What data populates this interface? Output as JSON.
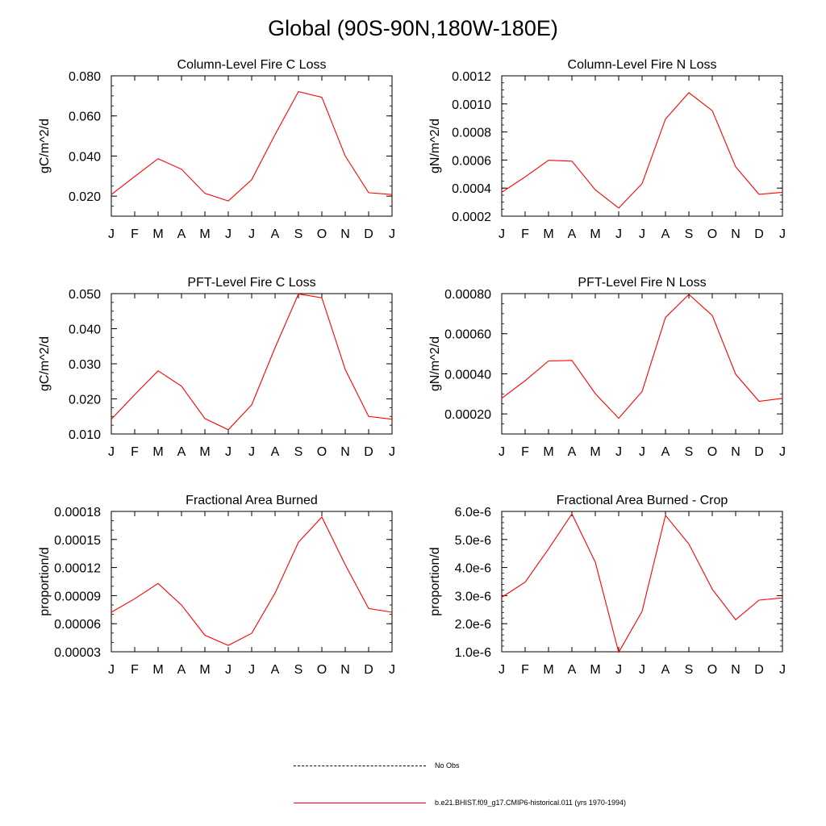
{
  "title": "Global (90S-90N,180W-180E)",
  "months": [
    "J",
    "F",
    "M",
    "A",
    "M",
    "J",
    "J",
    "A",
    "S",
    "O",
    "N",
    "D",
    "J"
  ],
  "series_color": "#ff0000",
  "chart_data": [
    {
      "type": "line",
      "title": "Column-Level Fire C Loss",
      "ylabel": "gC/m^2/d",
      "ylim": [
        0.01,
        0.08
      ],
      "yticks": [
        0.02,
        0.04,
        0.06,
        0.08
      ],
      "ytick_labels": [
        "0.020",
        "0.040",
        "0.060",
        "0.080"
      ],
      "yminor": 0.005,
      "series": [
        {
          "values": [
            0.0208,
            0.0298,
            0.0387,
            0.0334,
            0.0214,
            0.0176,
            0.0282,
            0.0507,
            0.0721,
            0.0693,
            0.04,
            0.0217,
            0.0208
          ]
        }
      ]
    },
    {
      "type": "line",
      "title": "Column-Level Fire N Loss",
      "ylabel": "gN/m^2/d",
      "ylim": [
        0.0002,
        0.0012
      ],
      "yticks": [
        0.0002,
        0.0004,
        0.0006,
        0.0008,
        0.001,
        0.0012
      ],
      "ytick_labels": [
        "0.0002",
        "0.0004",
        "0.0006",
        "0.0008",
        "0.0010",
        "0.0012"
      ],
      "yminor": 5e-05,
      "series": [
        {
          "values": [
            0.00037,
            0.00048,
            0.000598,
            0.000592,
            0.000388,
            0.000258,
            0.000432,
            0.000892,
            0.00108,
            0.000952,
            0.000552,
            0.000356,
            0.00037
          ]
        }
      ]
    },
    {
      "type": "line",
      "title": "PFT-Level Fire C Loss",
      "ylabel": "gC/m^2/d",
      "ylim": [
        0.01,
        0.05
      ],
      "yticks": [
        0.01,
        0.02,
        0.03,
        0.04,
        0.05
      ],
      "ytick_labels": [
        "0.010",
        "0.020",
        "0.030",
        "0.040",
        "0.050"
      ],
      "yminor": 0.0025,
      "series": [
        {
          "values": [
            0.0142,
            0.0212,
            0.028,
            0.0236,
            0.0144,
            0.0112,
            0.0183,
            0.0346,
            0.0499,
            0.0488,
            0.0284,
            0.015,
            0.0142
          ]
        }
      ]
    },
    {
      "type": "line",
      "title": "PFT-Level Fire N Loss",
      "ylabel": "gN/m^2/d",
      "ylim": [
        0.0001,
        0.0008
      ],
      "yticks": [
        0.0002,
        0.0004,
        0.0006,
        0.0008
      ],
      "ytick_labels": [
        "0.00020",
        "0.00040",
        "0.00060",
        "0.00080"
      ],
      "yminor": 5e-05,
      "series": [
        {
          "values": [
            0.000278,
            0.000366,
            0.000464,
            0.000467,
            0.000301,
            0.000178,
            0.000312,
            0.000681,
            0.000796,
            0.000691,
            0.000398,
            0.000263,
            0.000278
          ]
        }
      ]
    },
    {
      "type": "line",
      "title": "Fractional Area Burned",
      "ylabel": "proportion/d",
      "ylim": [
        3e-05,
        0.00018
      ],
      "yticks": [
        3e-05,
        6e-05,
        9e-05,
        0.00012,
        0.00015,
        0.00018
      ],
      "ytick_labels": [
        "0.00003",
        "0.00006",
        "0.00009",
        "0.00012",
        "0.00015",
        "0.00018"
      ],
      "yminor": 1e-05,
      "series": [
        {
          "values": [
            7.22e-05,
            8.66e-05,
            0.000103,
            7.99e-05,
            4.77e-05,
            3.68e-05,
            4.97e-05,
            9.28e-05,
            0.000147,
            0.000174,
            0.000123,
            7.62e-05,
            7.22e-05
          ]
        }
      ]
    },
    {
      "type": "line",
      "title": "Fractional Area Burned - Crop",
      "ylabel": "proportion/d",
      "ylim": [
        1e-06,
        6e-06
      ],
      "yticks": [
        1e-06,
        2e-06,
        3e-06,
        4e-06,
        5e-06,
        6e-06
      ],
      "ytick_labels": [
        "1.0e-6",
        "2.0e-6",
        "3.0e-6",
        "4.0e-6",
        "5.0e-6",
        "6.0e-6"
      ],
      "yminor": 2e-07,
      "series": [
        {
          "values": [
            2.94e-06,
            3.48e-06,
            4.66e-06,
            5.91e-06,
            4.19e-06,
            9.8e-07,
            2.44e-06,
            5.86e-06,
            4.84e-06,
            3.23e-06,
            2.14e-06,
            2.84e-06,
            2.92e-06
          ]
        }
      ]
    }
  ],
  "legend": [
    {
      "label": "No Obs",
      "style": "dashed",
      "color": "#000000"
    },
    {
      "label": "b.e21.BHIST.f09_g17.CMIP6-historical.011 (yrs 1970-1994)",
      "style": "solid",
      "color": "#ff0000"
    }
  ]
}
